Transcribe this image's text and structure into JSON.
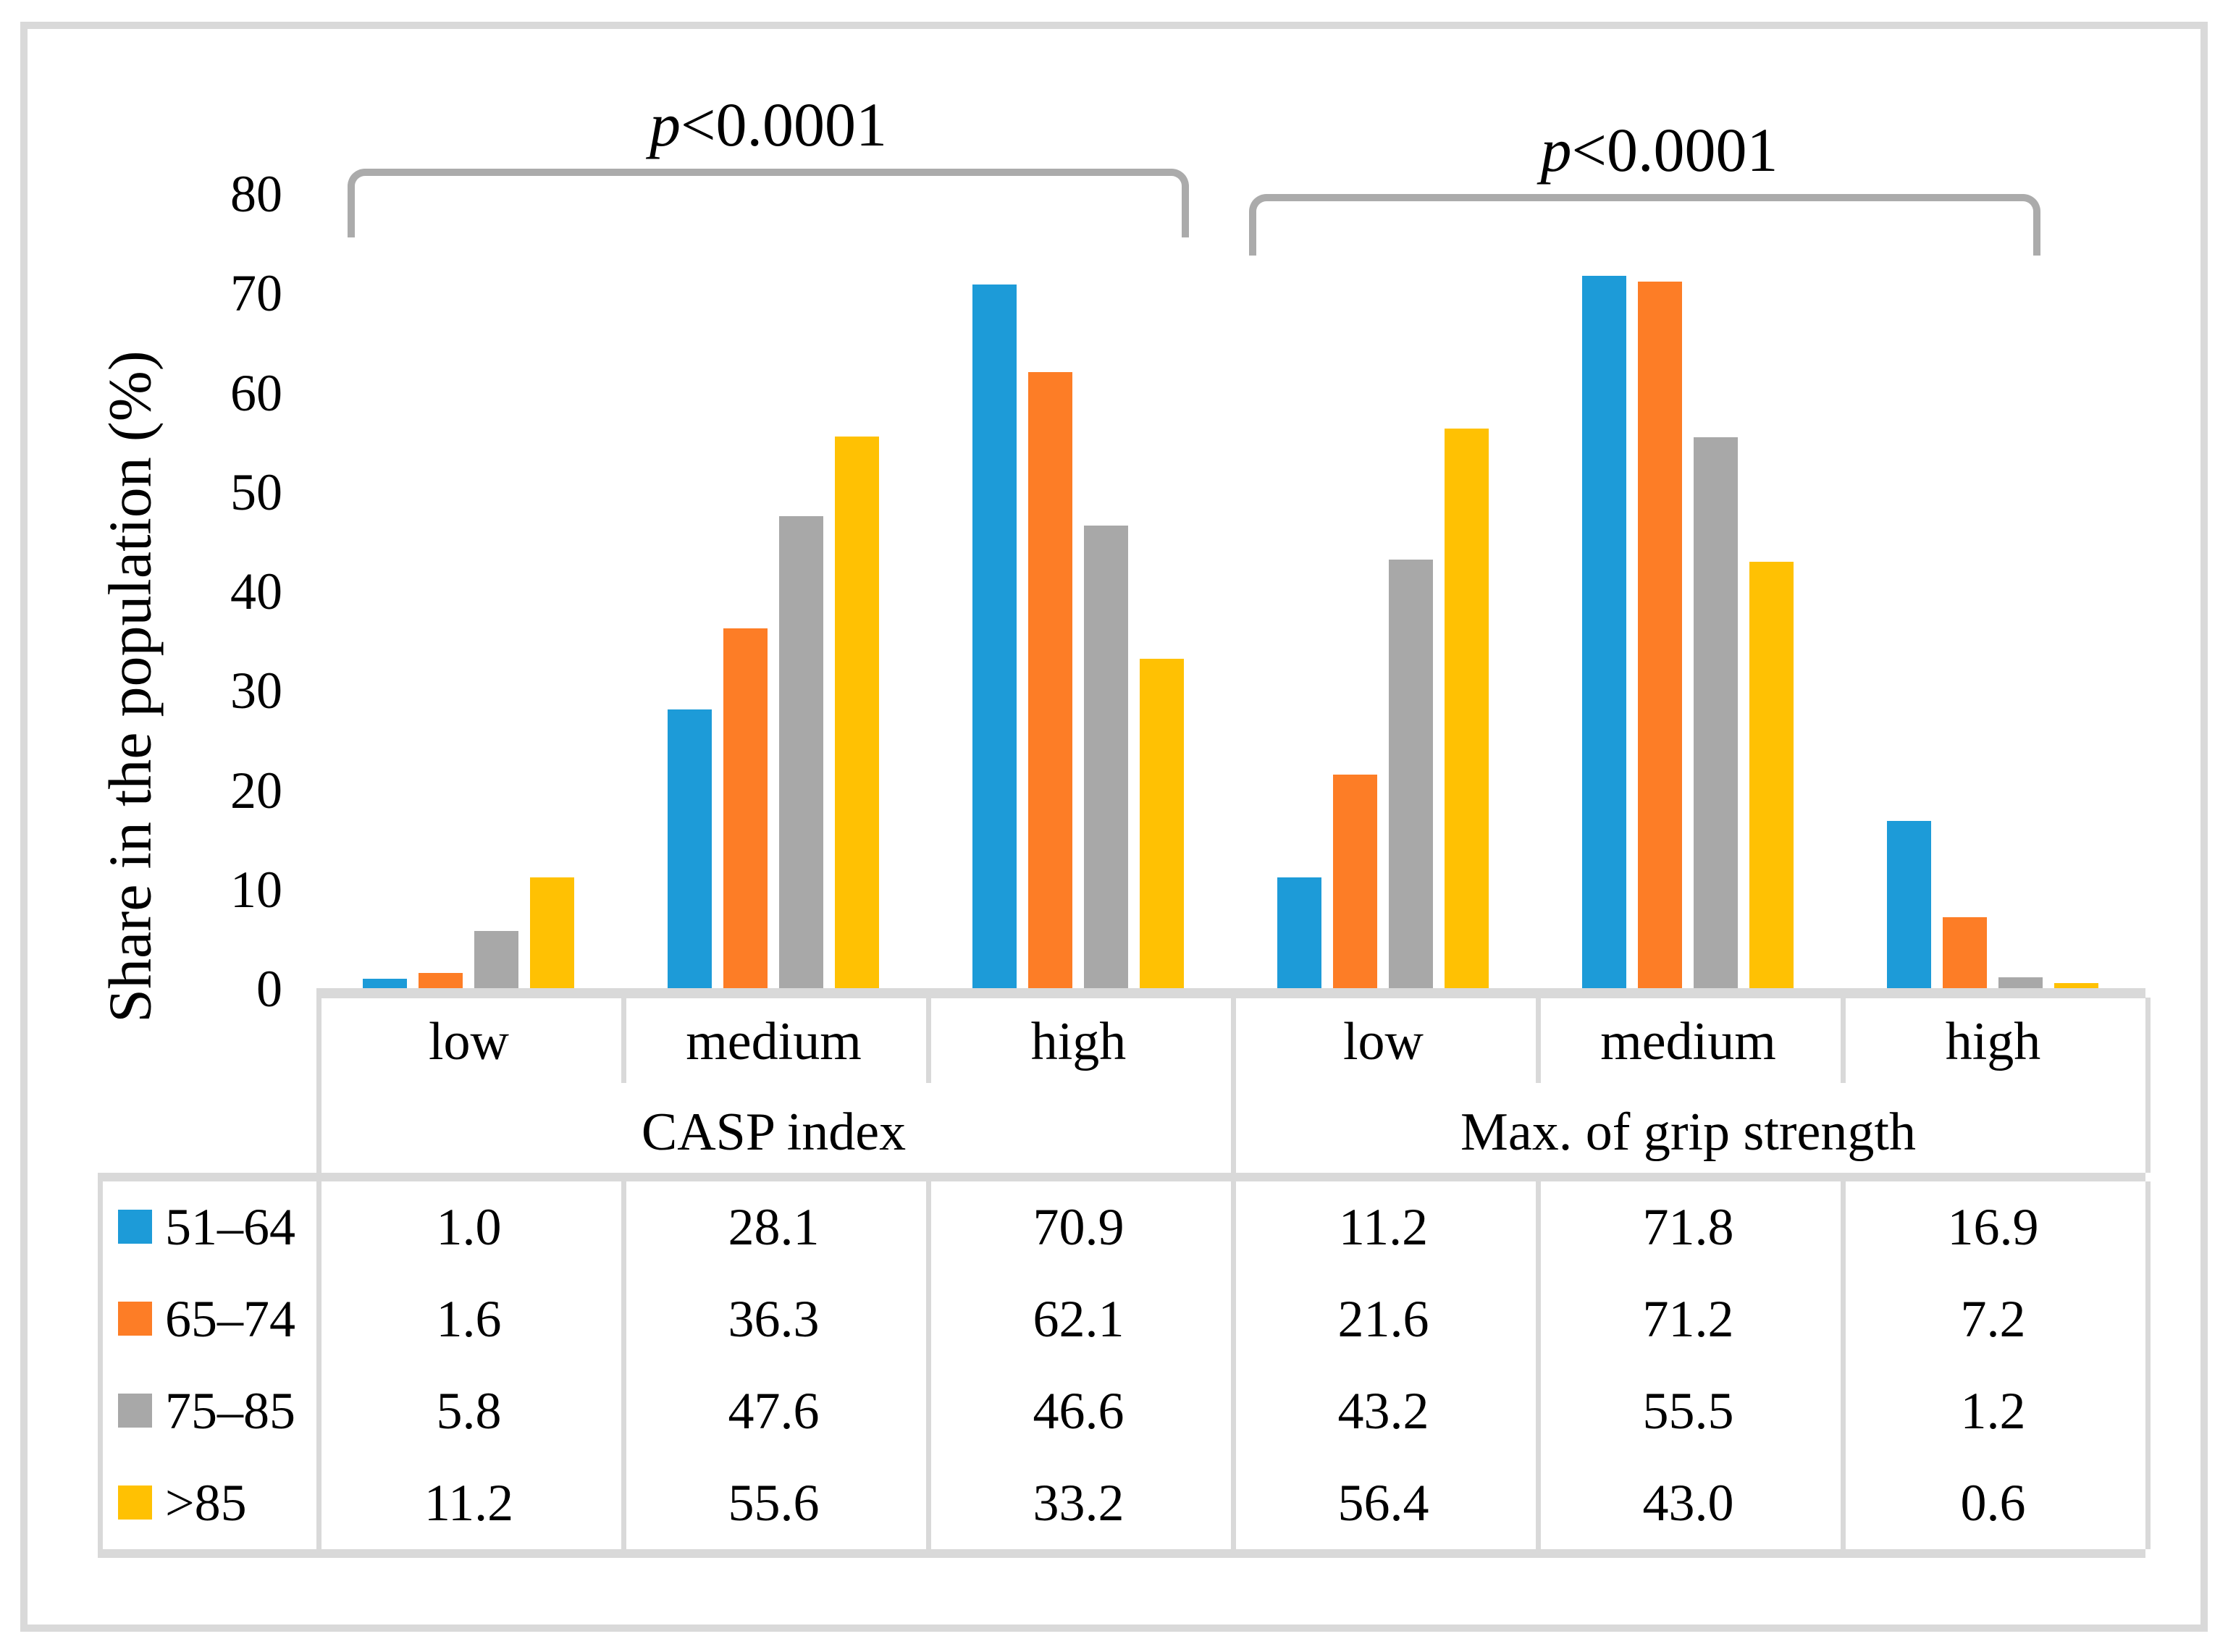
{
  "figure": {
    "border_color": "#D9D9D9",
    "bracket_color": "#ABABAB",
    "background": "#ffffff"
  },
  "chart_data": {
    "type": "bar",
    "title": "",
    "ylabel": "Share in the population (%)",
    "xlabel": "",
    "ylim": [
      0,
      80
    ],
    "yticks": [
      0,
      10,
      20,
      30,
      40,
      50,
      60,
      70,
      80
    ],
    "grid": false,
    "legend_position": "table-left",
    "value_format": "one-decimal",
    "groups": [
      {
        "label": "CASP index",
        "categories": [
          "low",
          "medium",
          "high"
        ]
      },
      {
        "label": "Max. of grip strength",
        "categories": [
          "low",
          "medium",
          "high"
        ]
      }
    ],
    "categories": [
      "low",
      "medium",
      "high",
      "low",
      "medium",
      "high"
    ],
    "series": [
      {
        "name": "51–64",
        "color": "#1D9BD8",
        "values": [
          1.0,
          28.1,
          70.9,
          11.2,
          71.8,
          16.9
        ]
      },
      {
        "name": "65–74",
        "color": "#FD7D26",
        "values": [
          1.6,
          36.3,
          62.1,
          21.6,
          71.2,
          7.2
        ]
      },
      {
        "name": "75–85",
        "color": "#A8A8A8",
        "values": [
          5.8,
          47.6,
          46.6,
          43.2,
          55.5,
          1.2
        ]
      },
      {
        "name": ">85",
        "color": "#FFC103",
        "values": [
          11.2,
          55.6,
          33.2,
          56.4,
          43.0,
          0.6
        ]
      }
    ],
    "annotations": [
      {
        "text": "p<0.0001",
        "span": "CASP index"
      },
      {
        "text": "p<0.0001",
        "span": "Max. of grip strength"
      }
    ]
  }
}
